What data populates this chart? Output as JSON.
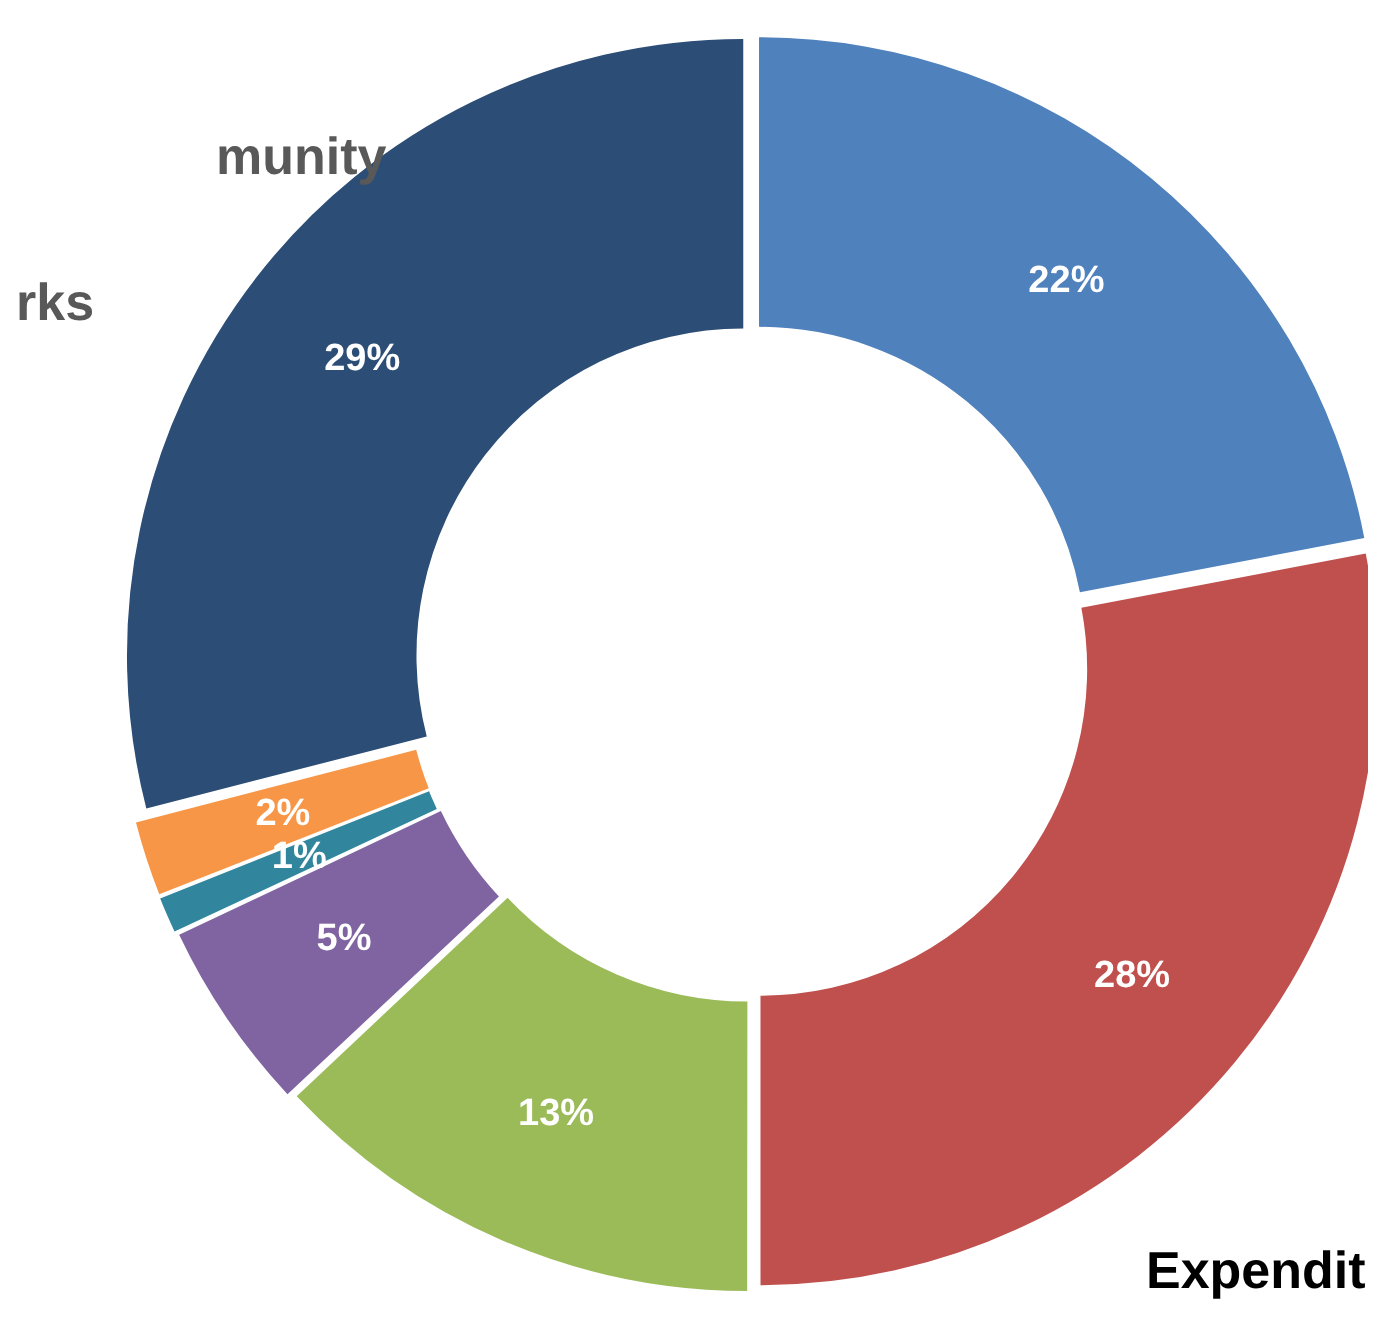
{
  "chart_data": {
    "type": "donut",
    "categories": [
      null,
      null,
      null,
      null,
      null,
      null,
      null
    ],
    "values": [
      22,
      28,
      13,
      5,
      1,
      2,
      29
    ],
    "colors": [
      "#4f81bd",
      "#c0504d",
      "#9bbb59",
      "#8064a2",
      "#31859c",
      "#f79646",
      "#2c4d75"
    ],
    "value_labels": [
      "22%",
      "28%",
      "13%",
      "5%",
      "1%",
      "2%",
      "29%"
    ],
    "legend": false,
    "annotations": [
      "munity",
      "rks",
      "Expendit"
    ]
  }
}
